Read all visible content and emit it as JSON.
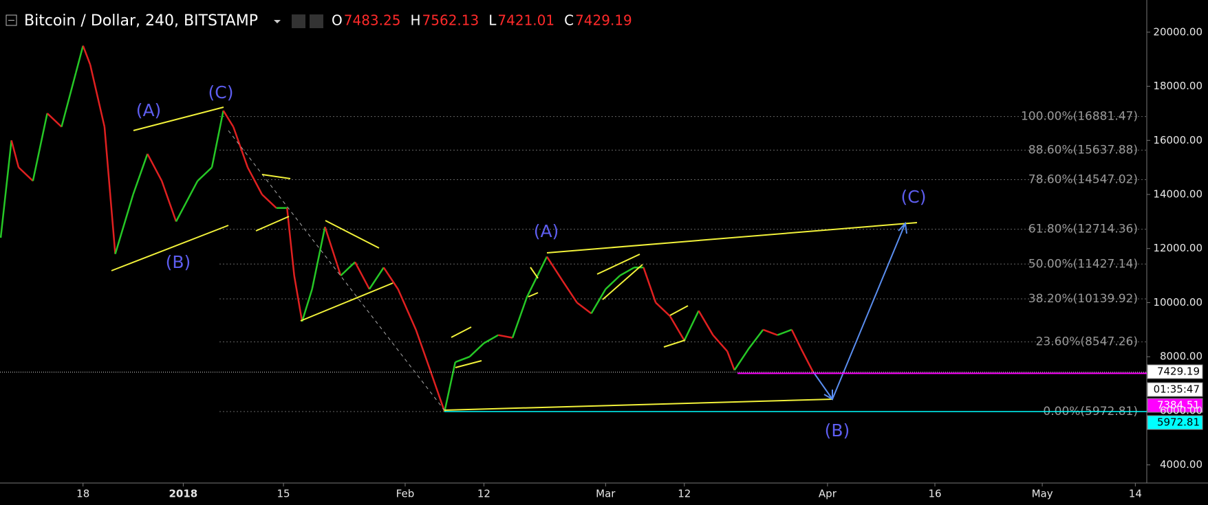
{
  "header": {
    "title": "Bitcoin / Dollar, 240, BITSTAMP",
    "ohlc": [
      {
        "label": "O",
        "value": "7483.25"
      },
      {
        "label": "H",
        "value": "7562.13"
      },
      {
        "label": "L",
        "value": "7421.01"
      },
      {
        "label": "C",
        "value": "7429.19"
      }
    ]
  },
  "chart_data": {
    "type": "line",
    "x": [
      5.5,
      7,
      8,
      10,
      12,
      14,
      16,
      17,
      18,
      20,
      21.5,
      24,
      26,
      28,
      30,
      31,
      33,
      35,
      36.6,
      38,
      40,
      42,
      44,
      45.5,
      46.5,
      47.6,
      49,
      50.8,
      53,
      55,
      57,
      59,
      61,
      63.5,
      65.5,
      67.5,
      69,
      71,
      73,
      75,
      77,
      79,
      81.8,
      84,
      86,
      88,
      90,
      92,
      94,
      95.3,
      97,
      99,
      101,
      103,
      105,
      107,
      108,
      110,
      112,
      114,
      116,
      117.3,
      119
    ],
    "values": [
      12400,
      16000,
      15000,
      14500,
      17000,
      16500,
      18500,
      19500,
      18800,
      16500,
      11800,
      14000,
      15500,
      14500,
      13000,
      13500,
      14500,
      15000,
      17100,
      16500,
      15000,
      14000,
      13500,
      13500,
      11000,
      9300,
      10500,
      12800,
      11000,
      11500,
      10500,
      11300,
      10500,
      9000,
      7500,
      5973,
      7800,
      8000,
      8500,
      8800,
      8700,
      10200,
      11700,
      10800,
      10000,
      9600,
      10500,
      11000,
      11300,
      11300,
      10000,
      9500,
      8600,
      9700,
      8800,
      8200,
      7500,
      8300,
      9000,
      8800,
      9000,
      8300,
      7429
    ],
    "up_color": "#26c826",
    "down_color": "#e02020",
    "ylim": [
      3330,
      21190
    ],
    "yticks": [
      {
        "value": 4000,
        "label": "4000.00"
      },
      {
        "value": 6000,
        "label": "6000.00"
      },
      {
        "value": 8000,
        "label": "8000.00"
      },
      {
        "value": 10000,
        "label": "10000.00"
      },
      {
        "value": 12000,
        "label": "12000.00"
      },
      {
        "value": 14000,
        "label": "14000.00"
      },
      {
        "value": 16000,
        "label": "16000.00"
      },
      {
        "value": 18000,
        "label": "18000.00"
      },
      {
        "value": 20000,
        "label": "20000.00"
      }
    ],
    "xlim": [
      5.4,
      165.6
    ],
    "xticks": [
      {
        "value": 17,
        "label": "18"
      },
      {
        "value": 31,
        "label": "2018"
      },
      {
        "value": 45,
        "label": "15"
      },
      {
        "value": 62,
        "label": "Feb"
      },
      {
        "value": 73,
        "label": "12"
      },
      {
        "value": 90,
        "label": "Mar"
      },
      {
        "value": 101,
        "label": "12"
      },
      {
        "value": 121,
        "label": "Apr"
      },
      {
        "value": 136,
        "label": "16"
      },
      {
        "value": 151,
        "label": "May"
      },
      {
        "value": 164,
        "label": "14"
      }
    ],
    "fib_levels": [
      {
        "value": 16881.47,
        "label": "100.00%(16881.47)"
      },
      {
        "value": 15637.88,
        "label": "88.60%(15637.88)"
      },
      {
        "value": 14547.02,
        "label": "78.60%(14547.02)"
      },
      {
        "value": 12714.36,
        "label": "61.80%(12714.36)"
      },
      {
        "value": 11427.14,
        "label": "50.00%(11427.14)"
      },
      {
        "value": 10139.92,
        "label": "38.20%(10139.92)"
      },
      {
        "value": 8547.26,
        "label": "23.60%(8547.26)"
      },
      {
        "value": 5972.81,
        "label": "0.00%(5972.81)"
      }
    ],
    "price_tags": [
      {
        "value": 7429.19,
        "label": "7429.19",
        "color": "#ffffff"
      },
      {
        "label": "01:35:47"
      },
      {
        "value": 7384.51,
        "label": "7384.51",
        "color": "#ff00ff"
      },
      {
        "value": 5972.81,
        "label": "5972.81",
        "color": "#00ffff"
      }
    ],
    "waves": [
      "(A)",
      "(B)",
      "(C)",
      "(A)",
      "(C)",
      "(B)"
    ]
  }
}
